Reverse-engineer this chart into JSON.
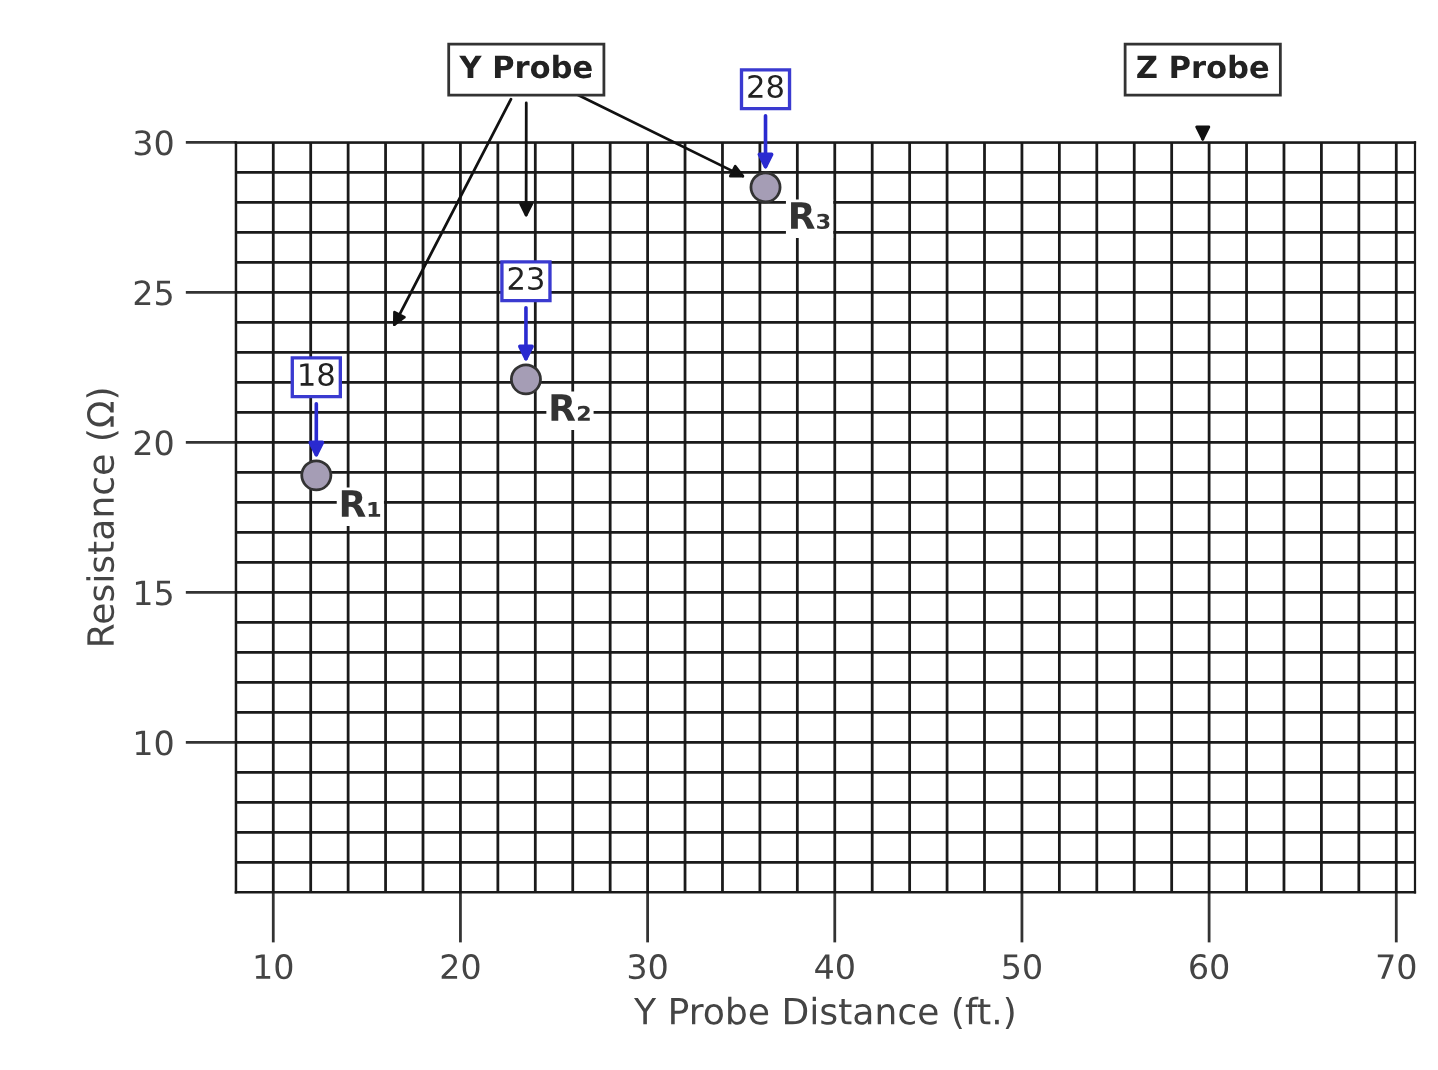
{
  "chart_data": {
    "type": "scatter",
    "xlabel": "Y Probe Distance (ft.)",
    "ylabel": "Resistance (Ω)",
    "x": [
      12.3,
      23.5,
      36.3
    ],
    "series": [
      {
        "color": "#a59db5",
        "values": [
          18.9,
          22.1,
          28.5
        ]
      }
    ],
    "marker": "circle",
    "grid": true,
    "xlim": [
      8,
      71
    ],
    "ylim": [
      5,
      30
    ],
    "xticks": [
      {
        "value": 8,
        "label": null
      },
      10,
      {
        "value": 12,
        "label": null
      },
      {
        "value": 14,
        "label": null
      },
      {
        "value": 16,
        "label": null
      },
      {
        "value": 18,
        "label": null
      },
      20,
      {
        "value": 22,
        "label": null
      },
      {
        "value": 24,
        "label": null
      },
      {
        "value": 26,
        "label": null
      },
      {
        "value": 28,
        "label": null
      },
      30,
      {
        "value": 32,
        "label": null
      },
      {
        "value": 34,
        "label": null
      },
      {
        "value": 36,
        "label": null
      },
      {
        "value": 38,
        "label": null
      },
      40,
      {
        "value": 42,
        "label": null
      },
      {
        "value": 44,
        "label": null
      },
      {
        "value": 46,
        "label": null
      },
      {
        "value": 48,
        "label": null
      },
      50,
      {
        "value": 52,
        "label": null
      },
      {
        "value": 54,
        "label": null
      },
      {
        "value": 56,
        "label": null
      },
      {
        "value": 58,
        "label": null
      },
      60,
      {
        "value": 62,
        "label": null
      },
      {
        "value": 64,
        "label": null
      },
      {
        "value": 66,
        "label": null
      },
      {
        "value": 68,
        "label": null
      },
      70
    ],
    "yticks": [
      {
        "value": 5,
        "label": null
      },
      {
        "value": 6,
        "label": null
      },
      {
        "value": 7,
        "label": null
      },
      {
        "value": 8,
        "label": null
      },
      {
        "value": 9,
        "label": null
      },
      10,
      {
        "value": 11,
        "label": null
      },
      {
        "value": 12,
        "label": null
      },
      {
        "value": 13,
        "label": null
      },
      {
        "value": 14,
        "label": null
      },
      15,
      {
        "value": 16,
        "label": null
      },
      {
        "value": 17,
        "label": null
      },
      {
        "value": 18,
        "label": null
      },
      {
        "value": 19,
        "label": null
      },
      20,
      {
        "value": 21,
        "label": null
      },
      {
        "value": 22,
        "label": null
      },
      {
        "value": 23,
        "label": null
      },
      {
        "value": 24,
        "label": null
      },
      25,
      {
        "value": 26,
        "label": null
      },
      {
        "value": 27,
        "label": null
      },
      {
        "value": 28,
        "label": null
      },
      {
        "value": 29,
        "label": null
      },
      30
    ],
    "annotations": [
      "18",
      "23",
      "28",
      {
        "text": "R₁",
        "x": 12.3,
        "y": 18.9
      },
      {
        "text": "R₂",
        "x": 23.5,
        "y": 22.1
      },
      {
        "text": "R₃",
        "x": 36.3,
        "y": 28.5
      },
      "Y Probe",
      "Z Probe"
    ]
  }
}
